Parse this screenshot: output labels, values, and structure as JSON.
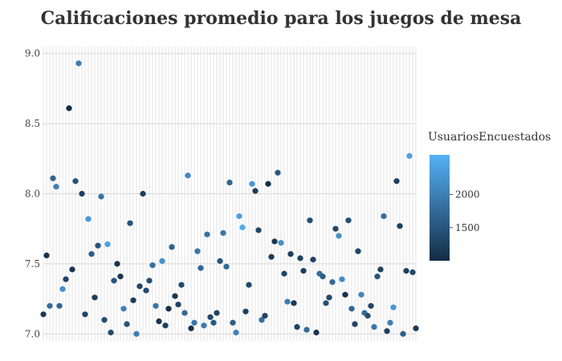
{
  "chart_data": {
    "type": "scatter",
    "title": "Calificaciones promedio para los juegos de mesa",
    "xlabel": "",
    "ylabel": "",
    "ylim": [
      6.95,
      9.05
    ],
    "yticks": [
      "9.0",
      "8.5",
      "8.0",
      "7.5",
      "7.0"
    ],
    "legend": {
      "title": "UsuariosEncuestados",
      "placement": "right",
      "min": 1000,
      "max": 2600,
      "ticks": [
        "2000",
        "1500"
      ],
      "color_low": "#132B43",
      "color_high": "#56B1F7"
    },
    "grid": true,
    "points": [
      {
        "x": 1,
        "y": 7.14,
        "c": 1150
      },
      {
        "x": 2,
        "y": 7.56,
        "c": 1100
      },
      {
        "x": 3,
        "y": 7.2,
        "c": 1800
      },
      {
        "x": 4,
        "y": 8.11,
        "c": 1700
      },
      {
        "x": 5,
        "y": 8.05,
        "c": 2000
      },
      {
        "x": 6,
        "y": 7.2,
        "c": 1700
      },
      {
        "x": 7,
        "y": 7.32,
        "c": 2200
      },
      {
        "x": 8,
        "y": 7.39,
        "c": 1300
      },
      {
        "x": 9,
        "y": 8.61,
        "c": 1000
      },
      {
        "x": 10,
        "y": 7.46,
        "c": 1100
      },
      {
        "x": 11,
        "y": 8.09,
        "c": 1450
      },
      {
        "x": 12,
        "y": 8.93,
        "c": 1950
      },
      {
        "x": 13,
        "y": 8.0,
        "c": 1250
      },
      {
        "x": 14,
        "y": 7.14,
        "c": 1300
      },
      {
        "x": 15,
        "y": 7.82,
        "c": 2300
      },
      {
        "x": 16,
        "y": 7.57,
        "c": 1600
      },
      {
        "x": 17,
        "y": 7.26,
        "c": 1200
      },
      {
        "x": 18,
        "y": 7.63,
        "c": 1500
      },
      {
        "x": 19,
        "y": 7.98,
        "c": 1850
      },
      {
        "x": 20,
        "y": 7.1,
        "c": 1400
      },
      {
        "x": 21,
        "y": 7.64,
        "c": 2400
      },
      {
        "x": 22,
        "y": 7.01,
        "c": 1350
      },
      {
        "x": 23,
        "y": 7.38,
        "c": 1500
      },
      {
        "x": 24,
        "y": 7.5,
        "c": 1100
      },
      {
        "x": 25,
        "y": 7.41,
        "c": 1150
      },
      {
        "x": 26,
        "y": 7.18,
        "c": 2000
      },
      {
        "x": 27,
        "y": 7.07,
        "c": 1450
      },
      {
        "x": 28,
        "y": 7.79,
        "c": 1450
      },
      {
        "x": 29,
        "y": 7.24,
        "c": 1200
      },
      {
        "x": 30,
        "y": 7.0,
        "c": 2000
      },
      {
        "x": 31,
        "y": 7.34,
        "c": 1300
      },
      {
        "x": 32,
        "y": 8.0,
        "c": 1200
      },
      {
        "x": 33,
        "y": 7.31,
        "c": 1400
      },
      {
        "x": 34,
        "y": 7.38,
        "c": 1400
      },
      {
        "x": 35,
        "y": 7.49,
        "c": 1800
      },
      {
        "x": 36,
        "y": 7.2,
        "c": 1900
      },
      {
        "x": 37,
        "y": 7.09,
        "c": 1100
      },
      {
        "x": 38,
        "y": 7.52,
        "c": 2200
      },
      {
        "x": 39,
        "y": 7.06,
        "c": 1250
      },
      {
        "x": 40,
        "y": 7.18,
        "c": 1050
      },
      {
        "x": 41,
        "y": 7.62,
        "c": 1700
      },
      {
        "x": 42,
        "y": 7.27,
        "c": 1150
      },
      {
        "x": 43,
        "y": 7.21,
        "c": 1300
      },
      {
        "x": 44,
        "y": 7.35,
        "c": 1350
      },
      {
        "x": 45,
        "y": 7.15,
        "c": 1750
      },
      {
        "x": 46,
        "y": 8.13,
        "c": 2100
      },
      {
        "x": 47,
        "y": 7.04,
        "c": 1050
      },
      {
        "x": 48,
        "y": 7.08,
        "c": 1900
      },
      {
        "x": 49,
        "y": 7.59,
        "c": 1900
      },
      {
        "x": 50,
        "y": 7.47,
        "c": 1700
      },
      {
        "x": 51,
        "y": 7.06,
        "c": 1950
      },
      {
        "x": 52,
        "y": 7.71,
        "c": 1850
      },
      {
        "x": 53,
        "y": 7.12,
        "c": 1350
      },
      {
        "x": 54,
        "y": 7.08,
        "c": 1550
      },
      {
        "x": 55,
        "y": 7.15,
        "c": 1300
      },
      {
        "x": 56,
        "y": 7.52,
        "c": 1500
      },
      {
        "x": 57,
        "y": 7.72,
        "c": 1900
      },
      {
        "x": 58,
        "y": 7.48,
        "c": 1750
      },
      {
        "x": 59,
        "y": 8.08,
        "c": 1700
      },
      {
        "x": 60,
        "y": 7.08,
        "c": 1600
      },
      {
        "x": 61,
        "y": 7.01,
        "c": 2000
      },
      {
        "x": 62,
        "y": 7.84,
        "c": 2400
      },
      {
        "x": 63,
        "y": 7.76,
        "c": 2500
      },
      {
        "x": 64,
        "y": 7.16,
        "c": 1250
      },
      {
        "x": 65,
        "y": 7.35,
        "c": 1350
      },
      {
        "x": 66,
        "y": 8.07,
        "c": 2300
      },
      {
        "x": 67,
        "y": 8.02,
        "c": 1200
      },
      {
        "x": 68,
        "y": 7.74,
        "c": 1300
      },
      {
        "x": 69,
        "y": 7.1,
        "c": 1800
      },
      {
        "x": 70,
        "y": 7.13,
        "c": 1300
      },
      {
        "x": 71,
        "y": 8.07,
        "c": 1050
      },
      {
        "x": 72,
        "y": 7.55,
        "c": 1200
      },
      {
        "x": 73,
        "y": 7.66,
        "c": 1150
      },
      {
        "x": 74,
        "y": 8.15,
        "c": 1550
      },
      {
        "x": 75,
        "y": 7.65,
        "c": 2200
      },
      {
        "x": 76,
        "y": 7.43,
        "c": 1300
      },
      {
        "x": 77,
        "y": 7.23,
        "c": 2000
      },
      {
        "x": 78,
        "y": 7.57,
        "c": 1250
      },
      {
        "x": 79,
        "y": 7.22,
        "c": 1150
      },
      {
        "x": 80,
        "y": 7.05,
        "c": 1300
      },
      {
        "x": 81,
        "y": 7.54,
        "c": 1250
      },
      {
        "x": 82,
        "y": 7.45,
        "c": 1250
      },
      {
        "x": 83,
        "y": 7.03,
        "c": 1750
      },
      {
        "x": 84,
        "y": 7.81,
        "c": 1400
      },
      {
        "x": 85,
        "y": 7.53,
        "c": 1250
      },
      {
        "x": 86,
        "y": 7.01,
        "c": 1100
      },
      {
        "x": 87,
        "y": 7.43,
        "c": 1800
      },
      {
        "x": 88,
        "y": 7.41,
        "c": 1600
      },
      {
        "x": 89,
        "y": 7.22,
        "c": 1450
      },
      {
        "x": 90,
        "y": 7.26,
        "c": 1350
      },
      {
        "x": 91,
        "y": 7.37,
        "c": 1750
      },
      {
        "x": 92,
        "y": 7.75,
        "c": 1350
      },
      {
        "x": 93,
        "y": 7.7,
        "c": 2200
      },
      {
        "x": 94,
        "y": 7.39,
        "c": 2150
      },
      {
        "x": 95,
        "y": 7.28,
        "c": 1100
      },
      {
        "x": 96,
        "y": 7.81,
        "c": 1400
      },
      {
        "x": 97,
        "y": 7.18,
        "c": 1700
      },
      {
        "x": 98,
        "y": 7.07,
        "c": 1300
      },
      {
        "x": 99,
        "y": 7.59,
        "c": 1300
      },
      {
        "x": 100,
        "y": 7.28,
        "c": 2100
      },
      {
        "x": 101,
        "y": 7.15,
        "c": 1800
      },
      {
        "x": 102,
        "y": 7.13,
        "c": 1400
      },
      {
        "x": 103,
        "y": 7.2,
        "c": 1300
      },
      {
        "x": 104,
        "y": 7.05,
        "c": 1900
      },
      {
        "x": 105,
        "y": 7.41,
        "c": 1500
      },
      {
        "x": 106,
        "y": 7.46,
        "c": 1250
      },
      {
        "x": 107,
        "y": 7.84,
        "c": 1800
      },
      {
        "x": 108,
        "y": 7.02,
        "c": 1200
      },
      {
        "x": 109,
        "y": 7.08,
        "c": 2000
      },
      {
        "x": 110,
        "y": 7.19,
        "c": 2300
      },
      {
        "x": 111,
        "y": 8.09,
        "c": 1250
      },
      {
        "x": 112,
        "y": 7.77,
        "c": 1250
      },
      {
        "x": 113,
        "y": 7.0,
        "c": 1600
      },
      {
        "x": 114,
        "y": 7.45,
        "c": 1250
      },
      {
        "x": 115,
        "y": 8.27,
        "c": 2400
      },
      {
        "x": 116,
        "y": 7.44,
        "c": 1350
      },
      {
        "x": 117,
        "y": 7.04,
        "c": 1150
      }
    ]
  }
}
